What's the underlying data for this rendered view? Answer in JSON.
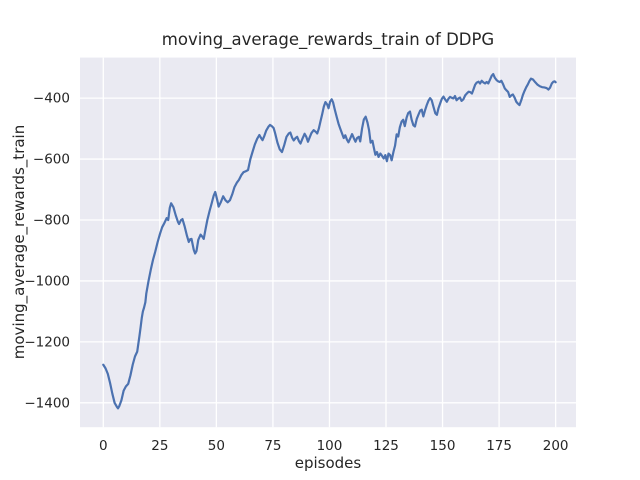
{
  "figure": {
    "title": "moving_average_rewards_train of DDPG",
    "xlabel": "episodes",
    "ylabel": "moving_average_rewards_train"
  },
  "chart_data": {
    "type": "line",
    "title": "moving_average_rewards_train of DDPG",
    "xlabel": "episodes",
    "ylabel": "moving_average_rewards_train",
    "legend": "none",
    "grid": true,
    "xlim": [
      -10.3,
      209.0
    ],
    "ylim": [
      -1480,
      -267
    ],
    "x_ticks": [
      {
        "value": 0,
        "label": "0"
      },
      {
        "value": 25,
        "label": "25"
      },
      {
        "value": 50,
        "label": "50"
      },
      {
        "value": 75,
        "label": "75"
      },
      {
        "value": 100,
        "label": "100"
      },
      {
        "value": 125,
        "label": "125"
      },
      {
        "value": 150,
        "label": "150"
      },
      {
        "value": 175,
        "label": "175"
      },
      {
        "value": 200,
        "label": "200"
      }
    ],
    "y_ticks": [
      {
        "value": -400,
        "label": "−400"
      },
      {
        "value": -600,
        "label": "−600"
      },
      {
        "value": -800,
        "label": "−800"
      },
      {
        "value": -1000,
        "label": "−1000"
      },
      {
        "value": -1200,
        "label": "−1200"
      },
      {
        "value": -1400,
        "label": "−1400"
      }
    ],
    "style": {
      "line_color": "#4c72b0",
      "axes_background": "#eaeaf2",
      "grid_color": "#ffffff",
      "text_color": "#262626",
      "figure_background": "#ffffff"
    },
    "series": [
      {
        "name": "moving_average_rewards_train",
        "points": [
          [
            0,
            -1275
          ],
          [
            1,
            -1287
          ],
          [
            2,
            -1305
          ],
          [
            3,
            -1335
          ],
          [
            4,
            -1370
          ],
          [
            5,
            -1400
          ],
          [
            6,
            -1413
          ],
          [
            6.5,
            -1418
          ],
          [
            7,
            -1412
          ],
          [
            8,
            -1392
          ],
          [
            9,
            -1360
          ],
          [
            10,
            -1346
          ],
          [
            11,
            -1338
          ],
          [
            12,
            -1310
          ],
          [
            13,
            -1275
          ],
          [
            14,
            -1248
          ],
          [
            15,
            -1232
          ],
          [
            16,
            -1180
          ],
          [
            16.5,
            -1152
          ],
          [
            17,
            -1122
          ],
          [
            17.5,
            -1100
          ],
          [
            18,
            -1088
          ],
          [
            18.6,
            -1070
          ],
          [
            19,
            -1042
          ],
          [
            20,
            -1000
          ],
          [
            21,
            -963
          ],
          [
            22,
            -930
          ],
          [
            23,
            -903
          ],
          [
            24,
            -873
          ],
          [
            25,
            -847
          ],
          [
            26,
            -824
          ],
          [
            27,
            -810
          ],
          [
            28,
            -794
          ],
          [
            28.7,
            -800
          ],
          [
            29.4,
            -760
          ],
          [
            30,
            -745
          ],
          [
            31,
            -758
          ],
          [
            32,
            -784
          ],
          [
            33,
            -806
          ],
          [
            33.5,
            -813
          ],
          [
            34.3,
            -801
          ],
          [
            35,
            -797
          ],
          [
            36,
            -822
          ],
          [
            37,
            -852
          ],
          [
            37.8,
            -872
          ],
          [
            38.4,
            -863
          ],
          [
            39,
            -862
          ],
          [
            40,
            -898
          ],
          [
            40.6,
            -910
          ],
          [
            41.2,
            -902
          ],
          [
            42,
            -865
          ],
          [
            43,
            -848
          ],
          [
            43.7,
            -854
          ],
          [
            44.4,
            -862
          ],
          [
            45.2,
            -830
          ],
          [
            46,
            -800
          ],
          [
            47,
            -770
          ],
          [
            48,
            -743
          ],
          [
            48.8,
            -720
          ],
          [
            49.5,
            -708
          ],
          [
            50.3,
            -732
          ],
          [
            51,
            -756
          ],
          [
            52,
            -741
          ],
          [
            53,
            -722
          ],
          [
            54,
            -735
          ],
          [
            55,
            -742
          ],
          [
            56,
            -735
          ],
          [
            57,
            -716
          ],
          [
            58,
            -692
          ],
          [
            59,
            -678
          ],
          [
            60,
            -668
          ],
          [
            61,
            -653
          ],
          [
            62,
            -643
          ],
          [
            63,
            -640
          ],
          [
            64,
            -636
          ],
          [
            65,
            -601
          ],
          [
            66,
            -576
          ],
          [
            67,
            -552
          ],
          [
            68,
            -534
          ],
          [
            69,
            -521
          ],
          [
            69.7,
            -530
          ],
          [
            70.4,
            -538
          ],
          [
            71.2,
            -524
          ],
          [
            72,
            -507
          ],
          [
            73,
            -494
          ],
          [
            73.7,
            -488
          ],
          [
            74.5,
            -492
          ],
          [
            75.3,
            -498
          ],
          [
            76,
            -516
          ],
          [
            77,
            -546
          ],
          [
            78,
            -568
          ],
          [
            79,
            -577
          ],
          [
            80,
            -554
          ],
          [
            81,
            -527
          ],
          [
            82,
            -516
          ],
          [
            82.7,
            -513
          ],
          [
            83.5,
            -530
          ],
          [
            84.2,
            -539
          ],
          [
            85,
            -531
          ],
          [
            85.7,
            -527
          ],
          [
            86.5,
            -541
          ],
          [
            87.2,
            -549
          ],
          [
            88,
            -534
          ],
          [
            89,
            -517
          ],
          [
            89.7,
            -526
          ],
          [
            90.5,
            -543
          ],
          [
            91.3,
            -528
          ],
          [
            92,
            -515
          ],
          [
            93,
            -505
          ],
          [
            94,
            -511
          ],
          [
            94.6,
            -516
          ],
          [
            95.3,
            -500
          ],
          [
            96,
            -477
          ],
          [
            96.8,
            -452
          ],
          [
            97.5,
            -428
          ],
          [
            98.2,
            -413
          ],
          [
            99,
            -421
          ],
          [
            99.6,
            -433
          ],
          [
            100.3,
            -411
          ],
          [
            101,
            -404
          ],
          [
            101.6,
            -414
          ],
          [
            102.3,
            -436
          ],
          [
            103.2,
            -462
          ],
          [
            104,
            -484
          ],
          [
            104.8,
            -501
          ],
          [
            105.6,
            -517
          ],
          [
            106.3,
            -531
          ],
          [
            107,
            -522
          ],
          [
            107.7,
            -536
          ],
          [
            108.4,
            -545
          ],
          [
            109.2,
            -532
          ],
          [
            110,
            -518
          ],
          [
            110.8,
            -532
          ],
          [
            111.5,
            -543
          ],
          [
            112.2,
            -531
          ],
          [
            113,
            -527
          ],
          [
            113.6,
            -542
          ],
          [
            114.4,
            -500
          ],
          [
            115.2,
            -470
          ],
          [
            116,
            -461
          ],
          [
            116.8,
            -480
          ],
          [
            117.5,
            -505
          ],
          [
            118.2,
            -546
          ],
          [
            119,
            -540
          ],
          [
            119.6,
            -562
          ],
          [
            120.3,
            -586
          ],
          [
            121,
            -577
          ],
          [
            121.7,
            -593
          ],
          [
            122.5,
            -582
          ],
          [
            123.2,
            -589
          ],
          [
            124,
            -598
          ],
          [
            124.7,
            -587
          ],
          [
            125.4,
            -607
          ],
          [
            126.1,
            -582
          ],
          [
            126.8,
            -587
          ],
          [
            127.5,
            -604
          ],
          [
            128.3,
            -576
          ],
          [
            129,
            -556
          ],
          [
            129.7,
            -519
          ],
          [
            130.4,
            -526
          ],
          [
            131.1,
            -496
          ],
          [
            131.9,
            -477
          ],
          [
            132.6,
            -471
          ],
          [
            133.3,
            -492
          ],
          [
            134.1,
            -464
          ],
          [
            134.8,
            -449
          ],
          [
            135.6,
            -444
          ],
          [
            136.3,
            -470
          ],
          [
            137.1,
            -489
          ],
          [
            137.8,
            -493
          ],
          [
            138.6,
            -468
          ],
          [
            139.3,
            -455
          ],
          [
            140.1,
            -441
          ],
          [
            140.8,
            -438
          ],
          [
            141.5,
            -460
          ],
          [
            142.3,
            -439
          ],
          [
            143,
            -423
          ],
          [
            143.8,
            -408
          ],
          [
            144.5,
            -400
          ],
          [
            145.2,
            -407
          ],
          [
            146,
            -429
          ],
          [
            146.8,
            -450
          ],
          [
            147.5,
            -455
          ],
          [
            148.2,
            -433
          ],
          [
            149,
            -416
          ],
          [
            149.7,
            -402
          ],
          [
            150.4,
            -395
          ],
          [
            151.1,
            -404
          ],
          [
            151.9,
            -412
          ],
          [
            152.6,
            -402
          ],
          [
            153.3,
            -396
          ],
          [
            154.1,
            -399
          ],
          [
            154.8,
            -401
          ],
          [
            155.5,
            -393
          ],
          [
            156.2,
            -407
          ],
          [
            157,
            -401
          ],
          [
            157.7,
            -398
          ],
          [
            158.4,
            -409
          ],
          [
            159.2,
            -404
          ],
          [
            160,
            -391
          ],
          [
            160.7,
            -385
          ],
          [
            161.5,
            -379
          ],
          [
            162.2,
            -380
          ],
          [
            163,
            -385
          ],
          [
            163.7,
            -371
          ],
          [
            164.4,
            -356
          ],
          [
            165.1,
            -349
          ],
          [
            165.9,
            -346
          ],
          [
            166.6,
            -352
          ],
          [
            167.3,
            -343
          ],
          [
            168,
            -348
          ],
          [
            168.8,
            -352
          ],
          [
            169.5,
            -347
          ],
          [
            170.2,
            -352
          ],
          [
            171,
            -339
          ],
          [
            171.7,
            -327
          ],
          [
            172.4,
            -321
          ],
          [
            173.1,
            -333
          ],
          [
            173.9,
            -341
          ],
          [
            174.6,
            -345
          ],
          [
            175.3,
            -347
          ],
          [
            176,
            -343
          ],
          [
            176.8,
            -355
          ],
          [
            177.5,
            -368
          ],
          [
            178.2,
            -374
          ],
          [
            179,
            -380
          ],
          [
            179.7,
            -396
          ],
          [
            180.4,
            -391
          ],
          [
            181.1,
            -388
          ],
          [
            181.9,
            -399
          ],
          [
            182.6,
            -412
          ],
          [
            183.3,
            -418
          ],
          [
            184,
            -423
          ],
          [
            184.8,
            -407
          ],
          [
            185.5,
            -390
          ],
          [
            186.2,
            -377
          ],
          [
            187,
            -364
          ],
          [
            187.7,
            -355
          ],
          [
            188.4,
            -344
          ],
          [
            189.1,
            -336
          ],
          [
            190,
            -339
          ],
          [
            191,
            -348
          ],
          [
            192,
            -356
          ],
          [
            193,
            -361
          ],
          [
            194,
            -364
          ],
          [
            195,
            -365
          ],
          [
            196,
            -367
          ],
          [
            196.8,
            -372
          ],
          [
            197.5,
            -366
          ],
          [
            198.3,
            -352
          ],
          [
            199,
            -346
          ],
          [
            199.6,
            -345
          ],
          [
            200,
            -348
          ]
        ]
      }
    ]
  }
}
